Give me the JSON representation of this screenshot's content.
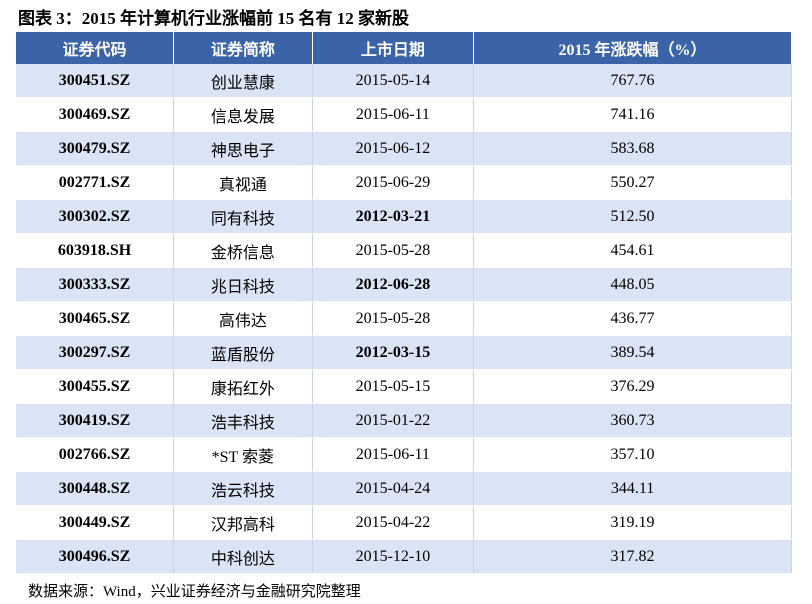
{
  "title": "图表 3：2015 年计算机行业涨幅前 15 名有 12 家新股",
  "table": {
    "headers": [
      "证券代码",
      "证券简称",
      "上市日期",
      "2015 年涨跌幅（%）"
    ],
    "rows": [
      [
        "300451.SZ",
        "创业慧康",
        "2015-05-14",
        "767.76"
      ],
      [
        "300469.SZ",
        "信息发展",
        "2015-06-11",
        "741.16"
      ],
      [
        "300479.SZ",
        "神思电子",
        "2015-06-12",
        "583.68"
      ],
      [
        "002771.SZ",
        "真视通",
        "2015-06-29",
        "550.27"
      ],
      [
        "300302.SZ",
        "同有科技",
        "2012-03-21",
        "512.50"
      ],
      [
        "603918.SH",
        "金桥信息",
        "2015-05-28",
        "454.61"
      ],
      [
        "300333.SZ",
        "兆日科技",
        "2012-06-28",
        "448.05"
      ],
      [
        "300465.SZ",
        "高伟达",
        "2015-05-28",
        "436.77"
      ],
      [
        "300297.SZ",
        "蓝盾股份",
        "2012-03-15",
        "389.54"
      ],
      [
        "300455.SZ",
        "康拓红外",
        "2015-05-15",
        "376.29"
      ],
      [
        "300419.SZ",
        "浩丰科技",
        "2015-01-22",
        "360.73"
      ],
      [
        "002766.SZ",
        "*ST 索菱",
        "2015-06-11",
        "357.10"
      ],
      [
        "300448.SZ",
        "浩云科技",
        "2015-04-24",
        "344.11"
      ],
      [
        "300449.SZ",
        "汉邦高科",
        "2015-04-22",
        "319.19"
      ],
      [
        "300496.SZ",
        "中科创达",
        "2015-12-10",
        "317.82"
      ]
    ],
    "bold_date_rows": [
      4,
      6,
      8
    ]
  },
  "source": "数据来源：Wind，兴业证券经济与金融研究院整理"
}
